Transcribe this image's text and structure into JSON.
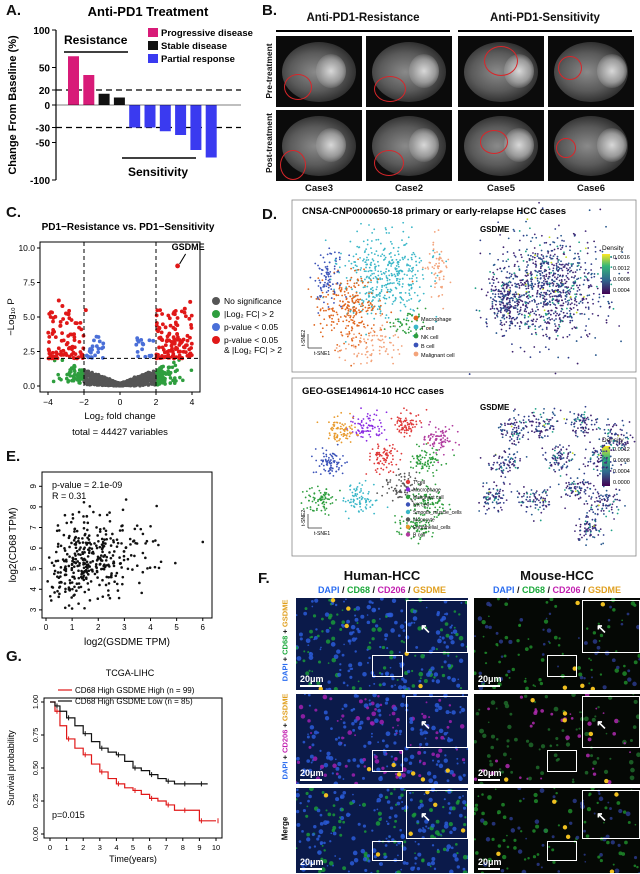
{
  "panelA": {
    "label": "A.",
    "title": "Anti-PD1 Treatment",
    "ylabel": "Change From Baseline (%)",
    "resistance_label": "Resistance",
    "sensitivity_label": "Sensitivity",
    "legend": [
      {
        "name": "Progressive disease",
        "color": "#d81b78"
      },
      {
        "name": "Stable disease",
        "color": "#111111"
      },
      {
        "name": "Partial response",
        "color": "#3a3af0"
      }
    ],
    "yticks": [
      "100",
      "50",
      "20",
      "0",
      "-30",
      "-50",
      "-100"
    ]
  },
  "panelB": {
    "label": "B.",
    "group_left": "Anti-PD1-Resistance",
    "group_right": "Anti-PD1-Sensitivity",
    "row_pre": "Pre-treatment",
    "row_post": "Post-treatment",
    "cases": [
      "Case3",
      "Case2",
      "Case5",
      "Case6"
    ]
  },
  "panelC": {
    "label": "C.",
    "title": "PD1−Resistance vs. PD1−Sensitivity",
    "ylabel": "−Log₁₀ P",
    "xlabel": "Log₂ fold change",
    "total": "total = 44427 variables",
    "gene": "GSDME",
    "legend": [
      {
        "name": "No significance",
        "color": "#555555"
      },
      {
        "name": "|Log₂ FC| > 2",
        "color": "#2e9e3e"
      },
      {
        "name": "p-value < 0.05",
        "color": "#4a6fd8"
      },
      {
        "name": "p-value < 0.05",
        "name2": "& |Log₂ FC| > 2",
        "color": "#e01818"
      }
    ],
    "xticks": [
      "−4",
      "−2",
      "0",
      "2",
      "4"
    ],
    "yticks": [
      "0.0",
      "2.5",
      "5.0",
      "7.5",
      "10.0"
    ]
  },
  "panelD": {
    "label": "D.",
    "top_title": "CNSA-CNP0000650-18 primary or early-relapse HCC cases",
    "bottom_title": "GEO-GSE149614-10 HCC cases",
    "gene": "GSDME",
    "density_label": "Density",
    "top_density_ticks": [
      "0.0016",
      "0.0012",
      "0.0008",
      "0.0004"
    ],
    "bottom_density_ticks": [
      "0.0012",
      "0.0008",
      "0.0004",
      "0.0000"
    ],
    "axis1": "t-SNE1",
    "axis2": "t-SNE2",
    "top_celltypes": [
      {
        "name": "Macrophage",
        "color": "#e0651c"
      },
      {
        "name": "T cell",
        "color": "#3ab7c8"
      },
      {
        "name": "NK cell",
        "color": "#2e9e3e"
      },
      {
        "name": "B cell",
        "color": "#3a52b8"
      },
      {
        "name": "Malignant cell",
        "color": "#f3a37a"
      }
    ],
    "bottom_celltypes": [
      {
        "name": "T cell",
        "color": "#e03a3a"
      },
      {
        "name": "Macrophage",
        "color": "#8a2be2"
      },
      {
        "name": "Malignant cell",
        "color": "#2e9e3e"
      },
      {
        "name": "NK cell",
        "color": "#3a52b8"
      },
      {
        "name": "Smooth_muscle_cells",
        "color": "#3ab7c8"
      },
      {
        "name": "Monocyte",
        "color": "#555555"
      },
      {
        "name": "Endothelial_cells",
        "color": "#e89a2c"
      },
      {
        "name": "B cell",
        "color": "#b03a9e"
      }
    ]
  },
  "panelE": {
    "label": "E.",
    "pvalue": "p-value = 2.1e-09",
    "r": "R = 0.31",
    "xlabel": "log2(GSDME TPM)",
    "ylabel": "log2(CD68 TPM)",
    "xticks": [
      "0",
      "1",
      "2",
      "3",
      "4",
      "5",
      "6"
    ],
    "yticks": [
      "3",
      "4",
      "5",
      "6",
      "7",
      "8",
      "9"
    ]
  },
  "panelF": {
    "label": "F.",
    "human": "Human-HCC",
    "mouse": "Mouse-HCC",
    "stain_dapi": "DAPI",
    "stain_cd68": "CD68",
    "stain_cd206": "CD206",
    "stain_gsdme": "GSDME",
    "sep": " / ",
    "row_merge": "Merge",
    "scalebar": "20μm"
  },
  "panelG": {
    "label": "G.",
    "title": "TCGA-LIHC",
    "legend_high": "CD68 High GSDME High (n = 99)",
    "legend_low": "CD68 High GSDME Low  (n = 85)",
    "pvalue": "p=0.015",
    "ylabel": "Survival probability",
    "xlabel": "Time(years)",
    "xticks": [
      "0",
      "1",
      "2",
      "3",
      "4",
      "5",
      "6",
      "7",
      "8",
      "9",
      "10"
    ],
    "yticks": [
      "0.00",
      "0.25",
      "0.50",
      "0.75",
      "1.00"
    ]
  },
  "chart_data": [
    {
      "type": "bar",
      "title": "Anti-PD1 Treatment",
      "ylabel": "Change From Baseline (%)",
      "ylim": [
        -100,
        100
      ],
      "values": [
        65,
        40,
        15,
        10,
        -30,
        -30,
        -35,
        -40,
        -60,
        -70
      ],
      "categories_status": [
        "Progressive disease",
        "Progressive disease",
        "Stable disease",
        "Stable disease",
        "Partial response",
        "Partial response",
        "Partial response",
        "Partial response",
        "Partial response",
        "Partial response"
      ],
      "reference_lines": [
        20,
        -30
      ]
    },
    {
      "type": "scatter",
      "title": "PD1−Resistance vs. PD1−Sensitivity",
      "xlabel": "Log₂ fold change",
      "ylabel": "−Log₁₀ P",
      "xlim": [
        -4,
        4
      ],
      "ylim": [
        0,
        10
      ],
      "thresholds": {
        "x": [
          -2,
          2
        ],
        "y": 2
      },
      "highlight": {
        "gene": "GSDME",
        "x": 3.2,
        "y": 8.7
      }
    },
    {
      "type": "scatter",
      "xlabel": "log2(GSDME TPM)",
      "ylabel": "log2(CD68 TPM)",
      "xlim": [
        0,
        6
      ],
      "ylim": [
        2.8,
        9.5
      ],
      "stats": {
        "p": "2.1e-09",
        "R": 0.31
      }
    },
    {
      "type": "line",
      "title": "TCGA-LIHC",
      "xlabel": "Time(years)",
      "ylabel": "Survival probability",
      "xlim": [
        0,
        10
      ],
      "ylim": [
        0,
        1
      ],
      "series": [
        {
          "name": "CD68 High GSDME High (n = 99)",
          "color": "#e01818",
          "x": [
            0,
            0.3,
            0.6,
            1,
            1.5,
            2,
            2.5,
            3,
            3.5,
            4,
            4.5,
            5,
            5.5,
            6,
            6.5,
            7,
            7.5,
            8,
            8.5,
            9,
            9.5,
            10
          ],
          "y": [
            1,
            0.93,
            0.82,
            0.72,
            0.65,
            0.6,
            0.53,
            0.47,
            0.42,
            0.38,
            0.35,
            0.33,
            0.3,
            0.27,
            0.25,
            0.22,
            0.18,
            0.18,
            0.18,
            0.1,
            0.1,
            0.1
          ]
        },
        {
          "name": "CD68 High GSDME Low  (n = 85)",
          "color": "#111111",
          "x": [
            0,
            0.3,
            0.6,
            1,
            1.5,
            2,
            2.5,
            3,
            3.5,
            4,
            4.5,
            5,
            5.5,
            6,
            6.5,
            7,
            7.5,
            8,
            8.5,
            9,
            9.5
          ],
          "y": [
            1,
            0.97,
            0.93,
            0.88,
            0.82,
            0.76,
            0.7,
            0.65,
            0.62,
            0.6,
            0.55,
            0.5,
            0.48,
            0.45,
            0.42,
            0.4,
            0.38,
            0.38,
            0.38,
            0.38,
            0.38
          ]
        }
      ],
      "annotation": "p=0.015"
    }
  ]
}
